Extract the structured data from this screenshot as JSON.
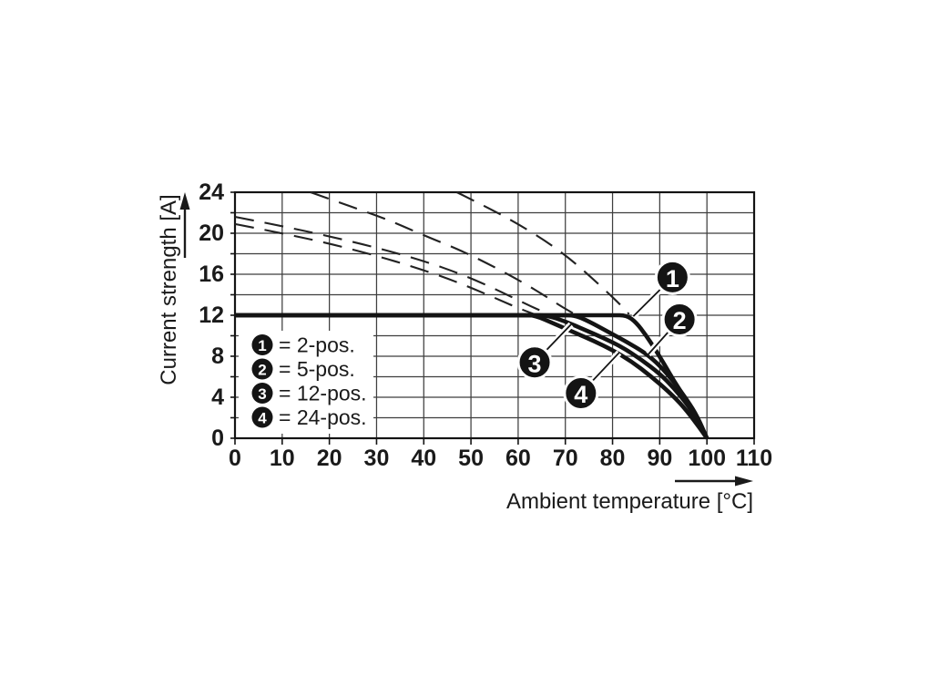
{
  "figure": {
    "background": "#ffffff",
    "ink": "#1a1a1a",
    "grid_color": "#3f3f3f",
    "curve_color": "#141414"
  },
  "chart_data": {
    "type": "line",
    "title": "",
    "xlabel": "Ambient temperature [°C]",
    "ylabel": "Current strength [A]",
    "xlim": [
      0,
      110
    ],
    "ylim": [
      0,
      24
    ],
    "x_ticks": [
      0,
      10,
      20,
      30,
      40,
      50,
      60,
      70,
      80,
      90,
      100,
      110
    ],
    "y_ticks": [
      0,
      4,
      8,
      12,
      16,
      20,
      24
    ],
    "x_grid_step": 10,
    "y_grid_step": 2,
    "grid": true,
    "legend_position": "inside lower-left",
    "rated_limit_a": 12,
    "series": [
      {
        "name": "2-pos. derating curve (12 A limited)",
        "legend_num": "1",
        "style": "solid",
        "points": [
          [
            0,
            12
          ],
          [
            80,
            12
          ],
          [
            83,
            12
          ],
          [
            85,
            11.3
          ],
          [
            87,
            10.1
          ],
          [
            89,
            8.7
          ],
          [
            91,
            7.2
          ],
          [
            93,
            5.6
          ],
          [
            95,
            4.2
          ],
          [
            97,
            2.6
          ],
          [
            99,
            0.9
          ],
          [
            100,
            0
          ]
        ]
      },
      {
        "name": "5-pos. derating curve (12 A limited)",
        "legend_num": "2",
        "style": "solid",
        "points": [
          [
            0,
            12
          ],
          [
            69,
            12
          ],
          [
            72,
            12
          ],
          [
            75,
            11.4
          ],
          [
            79,
            10.4
          ],
          [
            83,
            9.4
          ],
          [
            87,
            8.3
          ],
          [
            90,
            7.1
          ],
          [
            93,
            5.5
          ],
          [
            96,
            3.6
          ],
          [
            98,
            2.1
          ],
          [
            100,
            0
          ]
        ]
      },
      {
        "name": "12-pos. derating curve (12 A limited)",
        "legend_num": "3",
        "style": "solid",
        "points": [
          [
            0,
            12
          ],
          [
            63,
            12
          ],
          [
            66,
            12
          ],
          [
            70,
            11.4
          ],
          [
            74,
            10.6
          ],
          [
            78,
            9.8
          ],
          [
            82,
            8.9
          ],
          [
            86,
            7.7
          ],
          [
            90,
            6.3
          ],
          [
            93,
            4.9
          ],
          [
            96,
            3.2
          ],
          [
            98,
            1.8
          ],
          [
            100,
            0
          ]
        ]
      },
      {
        "name": "24-pos. derating curve (12 A limited)",
        "legend_num": "4",
        "style": "solid",
        "points": [
          [
            0,
            12
          ],
          [
            61,
            12
          ],
          [
            63.5,
            12
          ],
          [
            68,
            11.1
          ],
          [
            72,
            10.3
          ],
          [
            76,
            9.5
          ],
          [
            80,
            8.6
          ],
          [
            84,
            7.5
          ],
          [
            88,
            6.1
          ],
          [
            92,
            4.5
          ],
          [
            95,
            3.1
          ],
          [
            98,
            1.3
          ],
          [
            100,
            0
          ]
        ]
      },
      {
        "name": "2-pos. unlimited thermal curve",
        "legend_num": "1",
        "style": "dashed",
        "points": [
          [
            47,
            24
          ],
          [
            54,
            22.4
          ],
          [
            60,
            20.9
          ],
          [
            66,
            19.2
          ],
          [
            71,
            17.5
          ],
          [
            75,
            15.9
          ],
          [
            79,
            14.2
          ],
          [
            81.5,
            13.1
          ],
          [
            83.5,
            12.1
          ]
        ]
      },
      {
        "name": "5-pos. unlimited thermal curve",
        "legend_num": "2",
        "style": "dashed",
        "points": [
          [
            16,
            24
          ],
          [
            24,
            22.7
          ],
          [
            32,
            21.4
          ],
          [
            40,
            19.8
          ],
          [
            48,
            18.3
          ],
          [
            55,
            16.7
          ],
          [
            61,
            15.2
          ],
          [
            66,
            13.8
          ],
          [
            69,
            12.9
          ],
          [
            72,
            12.1
          ]
        ]
      },
      {
        "name": "12-pos. unlimited thermal curve",
        "legend_num": "3",
        "style": "dashed",
        "points": [
          [
            0,
            21.6
          ],
          [
            10,
            20.7
          ],
          [
            20,
            19.7
          ],
          [
            30,
            18.6
          ],
          [
            40,
            17.3
          ],
          [
            48,
            16
          ],
          [
            54,
            14.8
          ],
          [
            59,
            13.7
          ],
          [
            63,
            12.8
          ],
          [
            66.5,
            12.1
          ]
        ]
      },
      {
        "name": "24-pos. unlimited thermal curve",
        "legend_num": "4",
        "style": "dashed",
        "points": [
          [
            0,
            20.9
          ],
          [
            10,
            20
          ],
          [
            20,
            19
          ],
          [
            30,
            17.8
          ],
          [
            38,
            16.7
          ],
          [
            45,
            15.6
          ],
          [
            51,
            14.5
          ],
          [
            56,
            13.5
          ],
          [
            60,
            12.7
          ],
          [
            64,
            12
          ]
        ]
      }
    ],
    "callouts": [
      {
        "num": "1",
        "target": "2-pos. curve",
        "circle_at": [
          92.7,
          15.7
        ],
        "points_to": [
          84.4,
          11.9
        ]
      },
      {
        "num": "2",
        "target": "5-pos. curve",
        "circle_at": [
          94.2,
          11.6
        ],
        "points_to": [
          87.6,
          8.2
        ]
      },
      {
        "num": "3",
        "target": "12-pos. curve",
        "circle_at": [
          63.5,
          7.4
        ],
        "points_to": [
          71.2,
          11.1
        ]
      },
      {
        "num": "4",
        "target": "24-pos. curve",
        "circle_at": [
          73.3,
          4.4
        ],
        "points_to": [
          81.4,
          8.35
        ]
      }
    ]
  },
  "legend": {
    "items": [
      {
        "num": "1",
        "label": "= 2-pos."
      },
      {
        "num": "2",
        "label": "= 5-pos."
      },
      {
        "num": "3",
        "label": "= 12-pos."
      },
      {
        "num": "4",
        "label": "= 24-pos."
      }
    ]
  }
}
